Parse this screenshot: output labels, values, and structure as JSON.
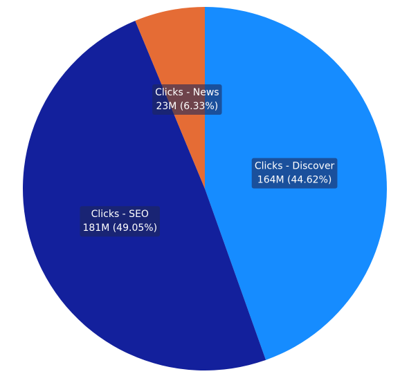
{
  "chart_data": {
    "type": "pie",
    "categories": [
      "Clicks - Discover",
      "Clicks - SEO",
      "Clicks - News"
    ],
    "values": [
      164,
      181,
      23
    ],
    "value_labels": [
      "164M (44.62%)",
      "181M (49.05%)",
      "23M (6.33%)"
    ],
    "colors": [
      "#168cff",
      "#13209c",
      "#e56c35"
    ]
  }
}
